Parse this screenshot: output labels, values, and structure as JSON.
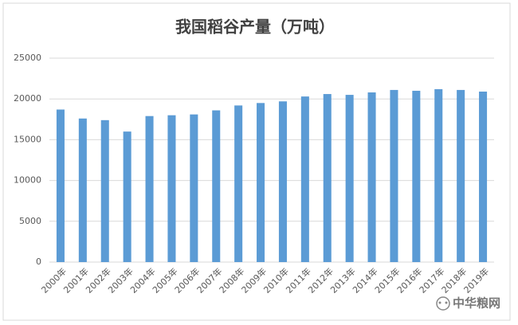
{
  "chart_data": {
    "type": "bar",
    "title": "我国稻谷产量（万吨）",
    "categories": [
      "2000年",
      "2001年",
      "2002年",
      "2003年",
      "2004年",
      "2005年",
      "2006年",
      "2007年",
      "2008年",
      "2009年",
      "2010年",
      "2011年",
      "2012年",
      "2013年",
      "2014年",
      "2015年",
      "2016年",
      "2017年",
      "2018年",
      "2019年"
    ],
    "values": [
      18700,
      17600,
      17400,
      16000,
      17900,
      18000,
      18100,
      18600,
      19200,
      19500,
      19700,
      20300,
      20600,
      20500,
      20800,
      21100,
      21000,
      21200,
      21100,
      20900
    ],
    "color": "#5b9bd5",
    "ylim": [
      0,
      25000
    ],
    "yticks": [
      0,
      5000,
      10000,
      15000,
      20000,
      25000
    ],
    "grid": true,
    "annotation": "中华粮网"
  }
}
